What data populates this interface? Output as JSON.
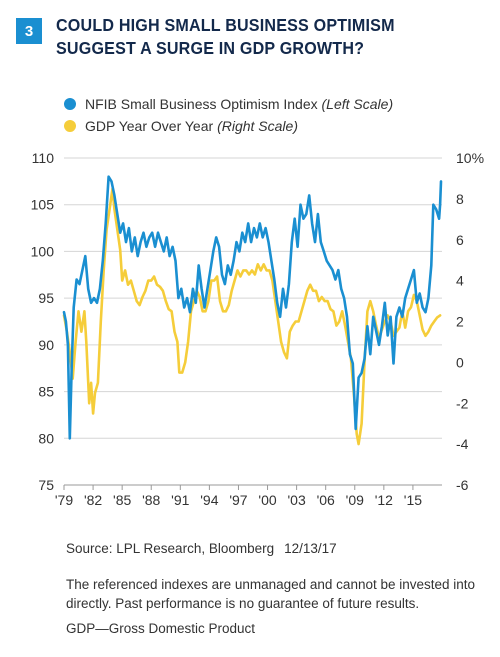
{
  "header": {
    "figure_number": "3",
    "title_line1": "COULD HIGH SMALL BUSINESS OPTIMISM",
    "title_line2": "SUGGEST A SURGE IN GDP GROWTH?"
  },
  "legend": [
    {
      "name": "NFIB Small Business Optimism Index",
      "note": "(Left Scale)",
      "color": "#1a8fd1"
    },
    {
      "name": "GDP Year Over Year",
      "note": "(Right Scale)",
      "color": "#f5cd3a"
    }
  ],
  "chart_data": {
    "type": "line",
    "left_axis": {
      "min": 75,
      "max": 110,
      "ticks": [
        "75",
        "80",
        "85",
        "90",
        "95",
        "100",
        "105",
        "110"
      ]
    },
    "right_axis": {
      "min": -6,
      "max": 10,
      "ticks": [
        "-6",
        "-4",
        "-2",
        "0",
        "2",
        "4",
        "6",
        "8",
        "10%"
      ]
    },
    "x_axis": {
      "min": 1979,
      "max": 2018,
      "ticks": [
        {
          "v": 1979,
          "label": "'79"
        },
        {
          "v": 1982,
          "label": "'82"
        },
        {
          "v": 1985,
          "label": "'85"
        },
        {
          "v": 1988,
          "label": "'88"
        },
        {
          "v": 1991,
          "label": "'91"
        },
        {
          "v": 1994,
          "label": "'94"
        },
        {
          "v": 1997,
          "label": "'97"
        },
        {
          "v": 2000,
          "label": "'00"
        },
        {
          "v": 2003,
          "label": "'03"
        },
        {
          "v": 2006,
          "label": "'06"
        },
        {
          "v": 2009,
          "label": "'09"
        },
        {
          "v": 2012,
          "label": "'12"
        },
        {
          "v": 2015,
          "label": "'15"
        }
      ]
    },
    "grid": "horizontal",
    "series": [
      {
        "name": "NFIB Small Business Optimism Index",
        "axis": "left",
        "color": "#1a8fd1",
        "points": [
          [
            1979.0,
            93.5
          ],
          [
            1979.2,
            92.5
          ],
          [
            1979.4,
            90.0
          ],
          [
            1979.6,
            80.0
          ],
          [
            1979.8,
            88.0
          ],
          [
            1980.0,
            94.0
          ],
          [
            1980.3,
            97.0
          ],
          [
            1980.6,
            96.5
          ],
          [
            1980.9,
            98.0
          ],
          [
            1981.2,
            99.5
          ],
          [
            1981.5,
            96.0
          ],
          [
            1981.8,
            94.5
          ],
          [
            1982.1,
            95.0
          ],
          [
            1982.4,
            94.5
          ],
          [
            1982.7,
            96.0
          ],
          [
            1983.0,
            99.0
          ],
          [
            1983.3,
            103.0
          ],
          [
            1983.6,
            108.0
          ],
          [
            1983.9,
            107.5
          ],
          [
            1984.2,
            106.0
          ],
          [
            1984.5,
            104.0
          ],
          [
            1984.8,
            102.0
          ],
          [
            1985.1,
            103.0
          ],
          [
            1985.4,
            101.0
          ],
          [
            1985.7,
            102.5
          ],
          [
            1986.0,
            100.0
          ],
          [
            1986.3,
            101.5
          ],
          [
            1986.6,
            99.5
          ],
          [
            1986.9,
            101.0
          ],
          [
            1987.2,
            102.0
          ],
          [
            1987.5,
            100.5
          ],
          [
            1987.8,
            101.5
          ],
          [
            1988.1,
            102.0
          ],
          [
            1988.4,
            100.5
          ],
          [
            1988.7,
            102.0
          ],
          [
            1989.0,
            101.0
          ],
          [
            1989.3,
            100.0
          ],
          [
            1989.6,
            101.5
          ],
          [
            1989.9,
            99.5
          ],
          [
            1990.2,
            100.5
          ],
          [
            1990.5,
            99.0
          ],
          [
            1990.8,
            95.0
          ],
          [
            1991.1,
            96.0
          ],
          [
            1991.4,
            94.0
          ],
          [
            1991.7,
            95.0
          ],
          [
            1992.0,
            93.5
          ],
          [
            1992.3,
            96.0
          ],
          [
            1992.6,
            94.5
          ],
          [
            1992.9,
            98.5
          ],
          [
            1993.2,
            96.0
          ],
          [
            1993.5,
            94.0
          ],
          [
            1993.8,
            96.0
          ],
          [
            1994.1,
            98.0
          ],
          [
            1994.4,
            100.0
          ],
          [
            1994.7,
            101.5
          ],
          [
            1995.0,
            100.5
          ],
          [
            1995.3,
            97.5
          ],
          [
            1995.6,
            96.5
          ],
          [
            1995.9,
            98.5
          ],
          [
            1996.2,
            97.5
          ],
          [
            1996.5,
            99.0
          ],
          [
            1996.8,
            101.0
          ],
          [
            1997.1,
            100.0
          ],
          [
            1997.4,
            102.0
          ],
          [
            1997.7,
            101.0
          ],
          [
            1998.0,
            103.0
          ],
          [
            1998.3,
            101.0
          ],
          [
            1998.6,
            102.5
          ],
          [
            1998.9,
            101.5
          ],
          [
            1999.2,
            103.0
          ],
          [
            1999.5,
            101.5
          ],
          [
            1999.8,
            102.5
          ],
          [
            2000.1,
            101.0
          ],
          [
            2000.4,
            99.0
          ],
          [
            2000.7,
            97.0
          ],
          [
            2001.0,
            94.5
          ],
          [
            2001.3,
            93.0
          ],
          [
            2001.6,
            96.0
          ],
          [
            2001.9,
            94.0
          ],
          [
            2002.2,
            96.5
          ],
          [
            2002.5,
            101.0
          ],
          [
            2002.8,
            103.5
          ],
          [
            2003.1,
            100.5
          ],
          [
            2003.4,
            105.0
          ],
          [
            2003.7,
            103.5
          ],
          [
            2004.0,
            104.0
          ],
          [
            2004.3,
            106.0
          ],
          [
            2004.6,
            103.0
          ],
          [
            2004.9,
            101.0
          ],
          [
            2005.2,
            104.0
          ],
          [
            2005.5,
            101.0
          ],
          [
            2005.8,
            100.0
          ],
          [
            2006.1,
            99.0
          ],
          [
            2006.4,
            98.5
          ],
          [
            2006.7,
            98.0
          ],
          [
            2007.0,
            97.0
          ],
          [
            2007.3,
            98.0
          ],
          [
            2007.6,
            96.0
          ],
          [
            2007.9,
            95.0
          ],
          [
            2008.2,
            93.0
          ],
          [
            2008.5,
            89.0
          ],
          [
            2008.8,
            88.0
          ],
          [
            2009.1,
            81.0
          ],
          [
            2009.4,
            86.5
          ],
          [
            2009.7,
            87.0
          ],
          [
            2010.0,
            88.5
          ],
          [
            2010.3,
            92.0
          ],
          [
            2010.6,
            89.0
          ],
          [
            2010.9,
            93.0
          ],
          [
            2011.2,
            91.5
          ],
          [
            2011.5,
            90.0
          ],
          [
            2011.8,
            92.0
          ],
          [
            2012.1,
            94.5
          ],
          [
            2012.4,
            91.0
          ],
          [
            2012.7,
            93.0
          ],
          [
            2013.0,
            88.0
          ],
          [
            2013.3,
            93.0
          ],
          [
            2013.6,
            94.0
          ],
          [
            2013.9,
            93.0
          ],
          [
            2014.2,
            95.0
          ],
          [
            2014.5,
            96.0
          ],
          [
            2014.8,
            97.0
          ],
          [
            2015.1,
            98.0
          ],
          [
            2015.4,
            94.5
          ],
          [
            2015.7,
            95.5
          ],
          [
            2016.0,
            94.0
          ],
          [
            2016.3,
            93.5
          ],
          [
            2016.6,
            95.0
          ],
          [
            2016.9,
            98.5
          ],
          [
            2017.1,
            105.0
          ],
          [
            2017.4,
            104.5
          ],
          [
            2017.7,
            103.5
          ],
          [
            2017.8,
            105.0
          ],
          [
            2017.9,
            107.5
          ]
        ]
      },
      {
        "name": "GDP Year Over Year",
        "axis": "right",
        "color": "#f5cd3a",
        "points": [
          [
            1979.0,
            2.3
          ],
          [
            1979.3,
            1.5
          ],
          [
            1979.6,
            0.5
          ],
          [
            1979.9,
            -0.8
          ],
          [
            1980.2,
            1.0
          ],
          [
            1980.5,
            2.5
          ],
          [
            1980.8,
            1.5
          ],
          [
            1981.1,
            2.5
          ],
          [
            1981.3,
            1.0
          ],
          [
            1981.6,
            -2.0
          ],
          [
            1981.8,
            -1.0
          ],
          [
            1982.0,
            -2.5
          ],
          [
            1982.2,
            -1.5
          ],
          [
            1982.5,
            -1.0
          ],
          [
            1982.8,
            2.0
          ],
          [
            1983.1,
            4.5
          ],
          [
            1983.4,
            6.5
          ],
          [
            1983.7,
            7.5
          ],
          [
            1984.0,
            8.5
          ],
          [
            1984.2,
            7.5
          ],
          [
            1984.5,
            6.5
          ],
          [
            1984.8,
            5.5
          ],
          [
            1985.0,
            4.0
          ],
          [
            1985.3,
            4.5
          ],
          [
            1985.6,
            3.8
          ],
          [
            1985.9,
            4.0
          ],
          [
            1986.2,
            3.5
          ],
          [
            1986.5,
            3.0
          ],
          [
            1986.8,
            2.8
          ],
          [
            1987.1,
            3.2
          ],
          [
            1987.4,
            3.5
          ],
          [
            1987.7,
            4.0
          ],
          [
            1988.0,
            4.0
          ],
          [
            1988.3,
            4.2
          ],
          [
            1988.6,
            3.8
          ],
          [
            1988.9,
            3.7
          ],
          [
            1989.2,
            3.5
          ],
          [
            1989.5,
            3.0
          ],
          [
            1989.8,
            2.6
          ],
          [
            1990.1,
            2.5
          ],
          [
            1990.4,
            1.5
          ],
          [
            1990.7,
            1.0
          ],
          [
            1990.9,
            -0.5
          ],
          [
            1991.2,
            -0.5
          ],
          [
            1991.5,
            0.0
          ],
          [
            1991.8,
            1.0
          ],
          [
            1992.1,
            2.5
          ],
          [
            1992.4,
            3.0
          ],
          [
            1992.7,
            3.5
          ],
          [
            1993.0,
            3.2
          ],
          [
            1993.3,
            2.5
          ],
          [
            1993.6,
            2.5
          ],
          [
            1993.9,
            3.0
          ],
          [
            1994.2,
            4.0
          ],
          [
            1994.5,
            4.0
          ],
          [
            1994.8,
            4.2
          ],
          [
            1995.1,
            3.0
          ],
          [
            1995.4,
            2.5
          ],
          [
            1995.7,
            2.5
          ],
          [
            1996.0,
            2.8
          ],
          [
            1996.3,
            3.5
          ],
          [
            1996.6,
            4.0
          ],
          [
            1996.9,
            4.5
          ],
          [
            1997.2,
            4.2
          ],
          [
            1997.5,
            4.5
          ],
          [
            1997.8,
            4.5
          ],
          [
            1998.1,
            4.3
          ],
          [
            1998.4,
            4.5
          ],
          [
            1998.7,
            4.3
          ],
          [
            1999.0,
            4.8
          ],
          [
            1999.3,
            4.5
          ],
          [
            1999.6,
            4.8
          ],
          [
            1999.9,
            4.5
          ],
          [
            2000.2,
            4.5
          ],
          [
            2000.5,
            4.0
          ],
          [
            2000.8,
            3.0
          ],
          [
            2001.1,
            2.0
          ],
          [
            2001.4,
            1.0
          ],
          [
            2001.7,
            0.5
          ],
          [
            2002.0,
            0.2
          ],
          [
            2002.3,
            1.5
          ],
          [
            2002.6,
            1.8
          ],
          [
            2002.9,
            2.0
          ],
          [
            2003.2,
            2.0
          ],
          [
            2003.5,
            2.5
          ],
          [
            2003.8,
            3.0
          ],
          [
            2004.1,
            3.5
          ],
          [
            2004.4,
            3.8
          ],
          [
            2004.7,
            3.5
          ],
          [
            2005.0,
            3.5
          ],
          [
            2005.3,
            3.0
          ],
          [
            2005.6,
            3.2
          ],
          [
            2005.9,
            3.0
          ],
          [
            2006.2,
            3.0
          ],
          [
            2006.5,
            2.6
          ],
          [
            2006.8,
            2.5
          ],
          [
            2007.1,
            1.8
          ],
          [
            2007.4,
            2.0
          ],
          [
            2007.7,
            2.5
          ],
          [
            2008.0,
            1.8
          ],
          [
            2008.3,
            1.0
          ],
          [
            2008.6,
            0.2
          ],
          [
            2008.9,
            -1.5
          ],
          [
            2009.2,
            -3.5
          ],
          [
            2009.4,
            -4.0
          ],
          [
            2009.7,
            -3.0
          ],
          [
            2010.0,
            0.0
          ],
          [
            2010.3,
            2.5
          ],
          [
            2010.6,
            3.0
          ],
          [
            2010.9,
            2.5
          ],
          [
            2011.2,
            1.8
          ],
          [
            2011.5,
            1.2
          ],
          [
            2011.8,
            1.6
          ],
          [
            2012.1,
            2.0
          ],
          [
            2012.4,
            2.3
          ],
          [
            2012.7,
            2.0
          ],
          [
            2013.0,
            1.3
          ],
          [
            2013.3,
            1.5
          ],
          [
            2013.6,
            1.7
          ],
          [
            2013.9,
            2.5
          ],
          [
            2014.2,
            1.7
          ],
          [
            2014.5,
            2.5
          ],
          [
            2014.8,
            2.7
          ],
          [
            2015.1,
            3.3
          ],
          [
            2015.4,
            3.0
          ],
          [
            2015.7,
            2.3
          ],
          [
            2016.0,
            1.6
          ],
          [
            2016.3,
            1.3
          ],
          [
            2016.6,
            1.5
          ],
          [
            2016.9,
            1.8
          ],
          [
            2017.2,
            2.0
          ],
          [
            2017.5,
            2.2
          ],
          [
            2017.8,
            2.3
          ]
        ]
      }
    ]
  },
  "footer": {
    "source": "Source: LPL Research, Bloomberg",
    "date": "12/13/17",
    "disclaimer": "The referenced indexes are unmanaged and cannot be invested into directly. Past performance is no guarantee of future results.",
    "abbreviation": "GDP—Gross Domestic Product"
  }
}
